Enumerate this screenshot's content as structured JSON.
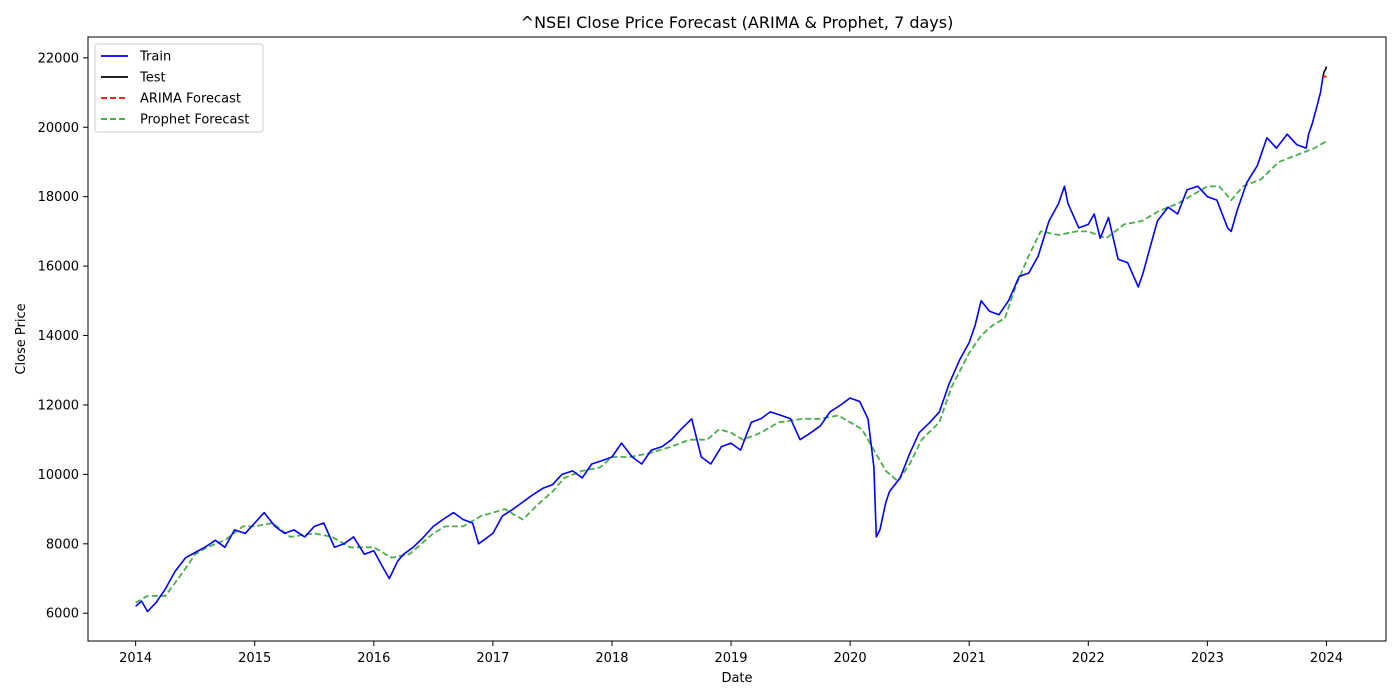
{
  "chart_data": {
    "type": "line",
    "title": "^NSEI Close Price Forecast (ARIMA & Prophet, 7 days)",
    "xlabel": "Date",
    "ylabel": "Close Price",
    "xlim": [
      2013.6,
      2024.5
    ],
    "ylim": [
      5200,
      22600
    ],
    "x_ticks": [
      2014,
      2015,
      2016,
      2017,
      2018,
      2019,
      2020,
      2021,
      2022,
      2023,
      2024
    ],
    "x_tick_labels": [
      "2014",
      "2015",
      "2016",
      "2017",
      "2018",
      "2019",
      "2020",
      "2021",
      "2022",
      "2023",
      "2024"
    ],
    "y_ticks": [
      6000,
      8000,
      10000,
      12000,
      14000,
      16000,
      18000,
      20000,
      22000
    ],
    "y_tick_labels": [
      "6000",
      "8000",
      "10000",
      "12000",
      "14000",
      "16000",
      "18000",
      "20000",
      "22000"
    ],
    "grid": false,
    "legend_position": "top-left",
    "series": [
      {
        "name": "Train",
        "color": "#0000ff",
        "style": "solid",
        "x": [
          2014.0,
          2014.05,
          2014.1,
          2014.17,
          2014.25,
          2014.33,
          2014.42,
          2014.5,
          2014.58,
          2014.67,
          2014.75,
          2014.83,
          2014.92,
          2015.0,
          2015.08,
          2015.17,
          2015.25,
          2015.33,
          2015.42,
          2015.5,
          2015.58,
          2015.67,
          2015.75,
          2015.83,
          2015.92,
          2016.0,
          2016.08,
          2016.13,
          2016.2,
          2016.25,
          2016.33,
          2016.42,
          2016.5,
          2016.58,
          2016.67,
          2016.75,
          2016.83,
          2016.88,
          2016.92,
          2017.0,
          2017.08,
          2017.17,
          2017.25,
          2017.33,
          2017.42,
          2017.5,
          2017.58,
          2017.67,
          2017.75,
          2017.83,
          2017.92,
          2018.0,
          2018.08,
          2018.17,
          2018.25,
          2018.33,
          2018.42,
          2018.5,
          2018.58,
          2018.67,
          2018.75,
          2018.83,
          2018.92,
          2019.0,
          2019.08,
          2019.17,
          2019.25,
          2019.33,
          2019.42,
          2019.5,
          2019.58,
          2019.67,
          2019.75,
          2019.83,
          2019.92,
          2020.0,
          2020.08,
          2020.15,
          2020.2,
          2020.22,
          2020.25,
          2020.3,
          2020.33,
          2020.42,
          2020.5,
          2020.58,
          2020.67,
          2020.75,
          2020.83,
          2020.92,
          2021.0,
          2021.05,
          2021.1,
          2021.17,
          2021.25,
          2021.33,
          2021.42,
          2021.5,
          2021.58,
          2021.67,
          2021.75,
          2021.8,
          2021.83,
          2021.92,
          2022.0,
          2022.05,
          2022.1,
          2022.17,
          2022.25,
          2022.33,
          2022.42,
          2022.46,
          2022.5,
          2022.58,
          2022.67,
          2022.75,
          2022.83,
          2022.92,
          2023.0,
          2023.08,
          2023.17,
          2023.2,
          2023.25,
          2023.33,
          2023.42,
          2023.5,
          2023.58,
          2023.67,
          2023.75,
          2023.83,
          2023.85,
          2023.88,
          2023.92,
          2023.95,
          2023.97
        ],
        "values": [
          6200,
          6350,
          6050,
          6300,
          6700,
          7200,
          7600,
          7750,
          7900,
          8100,
          7900,
          8400,
          8300,
          8600,
          8900,
          8500,
          8300,
          8400,
          8200,
          8500,
          8600,
          7900,
          8000,
          8200,
          7700,
          7800,
          7300,
          7000,
          7500,
          7700,
          7900,
          8200,
          8500,
          8700,
          8900,
          8700,
          8600,
          8000,
          8100,
          8300,
          8800,
          9000,
          9200,
          9400,
          9600,
          9700,
          10000,
          10100,
          9900,
          10300,
          10400,
          10500,
          10900,
          10500,
          10300,
          10700,
          10800,
          11000,
          11300,
          11600,
          10500,
          10300,
          10800,
          10900,
          10700,
          11500,
          11600,
          11800,
          11700,
          11600,
          11000,
          11200,
          11400,
          11800,
          12000,
          12200,
          12100,
          11600,
          10200,
          8200,
          8400,
          9200,
          9500,
          9900,
          10600,
          11200,
          11500,
          11800,
          12600,
          13300,
          13800,
          14300,
          15000,
          14700,
          14600,
          15000,
          15700,
          15800,
          16300,
          17300,
          17800,
          18300,
          17800,
          17100,
          17200,
          17500,
          16800,
          17400,
          16200,
          16100,
          15400,
          15800,
          16300,
          17300,
          17700,
          17500,
          18200,
          18300,
          18000,
          17900,
          17100,
          17000,
          17600,
          18400,
          18900,
          19700,
          19400,
          19800,
          19500,
          19400,
          19800,
          20100,
          20600,
          21000,
          21450
        ]
      },
      {
        "name": "Test",
        "color": "#000000",
        "style": "solid",
        "x": [
          2023.97,
          2023.98,
          2023.99,
          2024.0
        ],
        "values": [
          21450,
          21600,
          21650,
          21750
        ]
      },
      {
        "name": "ARIMA Forecast",
        "color": "#ff0000",
        "style": "dashed",
        "x": [
          2023.97,
          2023.98,
          2023.99,
          2024.0
        ],
        "values": [
          21450,
          21460,
          21460,
          21470
        ]
      },
      {
        "name": "Prophet Forecast",
        "color": "#2ca02c",
        "style": "dashed",
        "x": [
          2014.0,
          2014.1,
          2014.25,
          2014.4,
          2014.5,
          2014.6,
          2014.75,
          2014.9,
          2015.0,
          2015.15,
          2015.3,
          2015.5,
          2015.65,
          2015.8,
          2016.0,
          2016.15,
          2016.3,
          2016.5,
          2016.6,
          2016.75,
          2016.9,
          2017.0,
          2017.1,
          2017.25,
          2017.4,
          2017.5,
          2017.6,
          2017.75,
          2017.9,
          2018.0,
          2018.15,
          2018.3,
          2018.5,
          2018.65,
          2018.8,
          2018.9,
          2019.0,
          2019.1,
          2019.25,
          2019.4,
          2019.6,
          2019.75,
          2019.9,
          2020.0,
          2020.1,
          2020.2,
          2020.3,
          2020.4,
          2020.5,
          2020.6,
          2020.75,
          2020.85,
          2021.0,
          2021.1,
          2021.2,
          2021.3,
          2021.4,
          2021.5,
          2021.6,
          2021.75,
          2021.9,
          2022.0,
          2022.15,
          2022.3,
          2022.45,
          2022.6,
          2022.75,
          2022.85,
          2023.0,
          2023.1,
          2023.2,
          2023.3,
          2023.45,
          2023.6,
          2023.75,
          2023.9,
          2024.0
        ],
        "values": [
          6300,
          6500,
          6500,
          7200,
          7700,
          7900,
          8100,
          8500,
          8500,
          8600,
          8200,
          8300,
          8200,
          7900,
          7900,
          7600,
          7700,
          8300,
          8500,
          8500,
          8800,
          8900,
          9000,
          8700,
          9200,
          9500,
          9900,
          10100,
          10200,
          10500,
          10500,
          10600,
          10800,
          11000,
          11000,
          11300,
          11200,
          11000,
          11200,
          11500,
          11600,
          11600,
          11700,
          11500,
          11300,
          10700,
          10100,
          9800,
          10300,
          11000,
          11500,
          12500,
          13500,
          14000,
          14300,
          14500,
          15500,
          16300,
          17000,
          16900,
          17000,
          17000,
          16800,
          17200,
          17300,
          17600,
          17800,
          18000,
          18300,
          18300,
          17900,
          18300,
          18500,
          19000,
          19200,
          19400,
          19600
        ]
      }
    ]
  }
}
